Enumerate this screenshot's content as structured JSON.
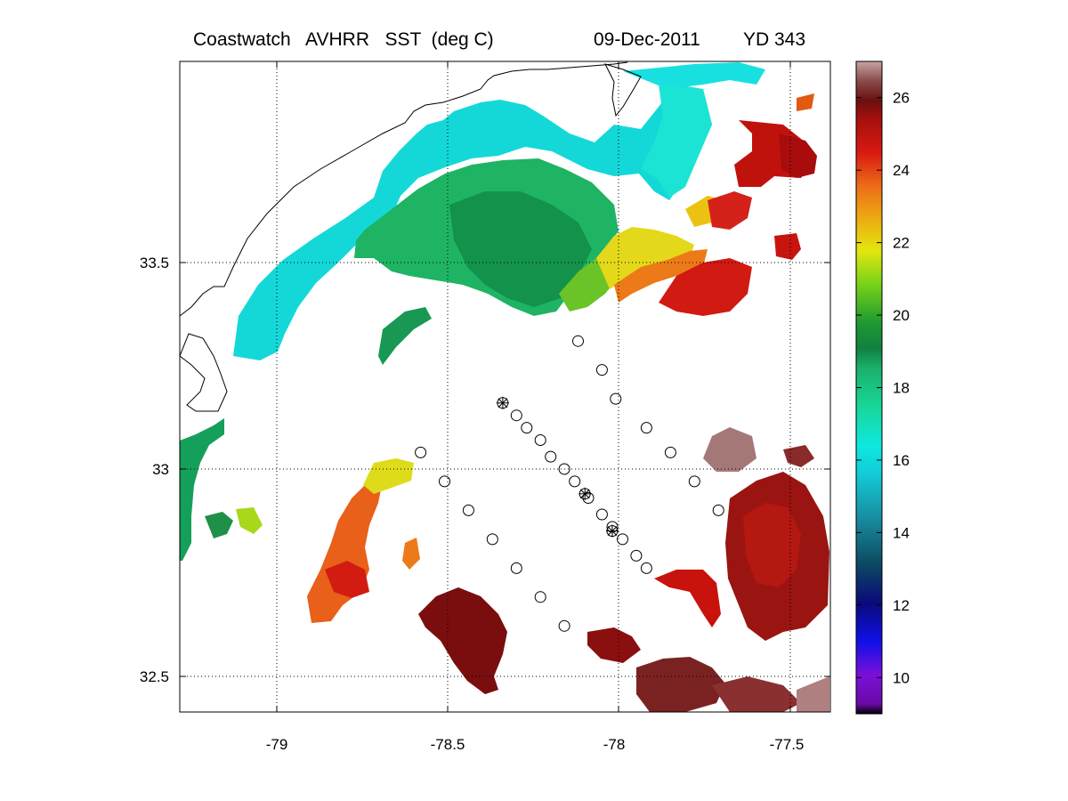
{
  "title": {
    "product": "Coastwatch   AVHRR   SST  (deg C)",
    "date": "09-Dec-2011",
    "yearday": "YD 343"
  },
  "chart_data": {
    "type": "heatmap",
    "x_ticks": [
      "-79",
      "-78.5",
      "-78",
      "-77.5"
    ],
    "y_ticks": [
      "33.5",
      "33",
      "32.5"
    ],
    "lon_range": [
      -79.25,
      -77.37
    ],
    "lat_range": [
      32.41,
      33.97
    ],
    "grid": true,
    "colorbar": {
      "range": [
        9,
        27
      ],
      "tick_labels": [
        "26",
        "24",
        "22",
        "20",
        "18",
        "16",
        "14",
        "12",
        "10"
      ],
      "tick_values": [
        26,
        24,
        22,
        20,
        18,
        16,
        14,
        12,
        10
      ]
    },
    "station_markers": {
      "circle_stations": [
        [
          -78.12,
          33.31
        ],
        [
          -78.05,
          33.24
        ],
        [
          -78.01,
          33.17
        ],
        [
          -77.92,
          33.1
        ],
        [
          -77.85,
          33.04
        ],
        [
          -77.78,
          32.97
        ],
        [
          -77.71,
          32.9
        ],
        [
          -78.58,
          33.04
        ],
        [
          -78.51,
          32.97
        ],
        [
          -78.44,
          32.9
        ],
        [
          -78.37,
          32.83
        ],
        [
          -78.3,
          32.76
        ],
        [
          -78.23,
          32.69
        ],
        [
          -78.16,
          32.62
        ],
        [
          -78.3,
          33.13
        ],
        [
          -78.27,
          33.1
        ],
        [
          -78.23,
          33.07
        ],
        [
          -78.2,
          33.03
        ],
        [
          -78.16,
          33.0
        ],
        [
          -78.13,
          32.97
        ],
        [
          -78.09,
          32.93
        ],
        [
          -78.05,
          32.89
        ],
        [
          -78.02,
          32.86
        ],
        [
          -77.99,
          32.83
        ],
        [
          -77.95,
          32.79
        ],
        [
          -77.92,
          32.76
        ]
      ],
      "star_stations": [
        [
          -78.34,
          33.16
        ],
        [
          -78.1,
          32.94
        ],
        [
          -78.02,
          32.85
        ]
      ]
    }
  }
}
